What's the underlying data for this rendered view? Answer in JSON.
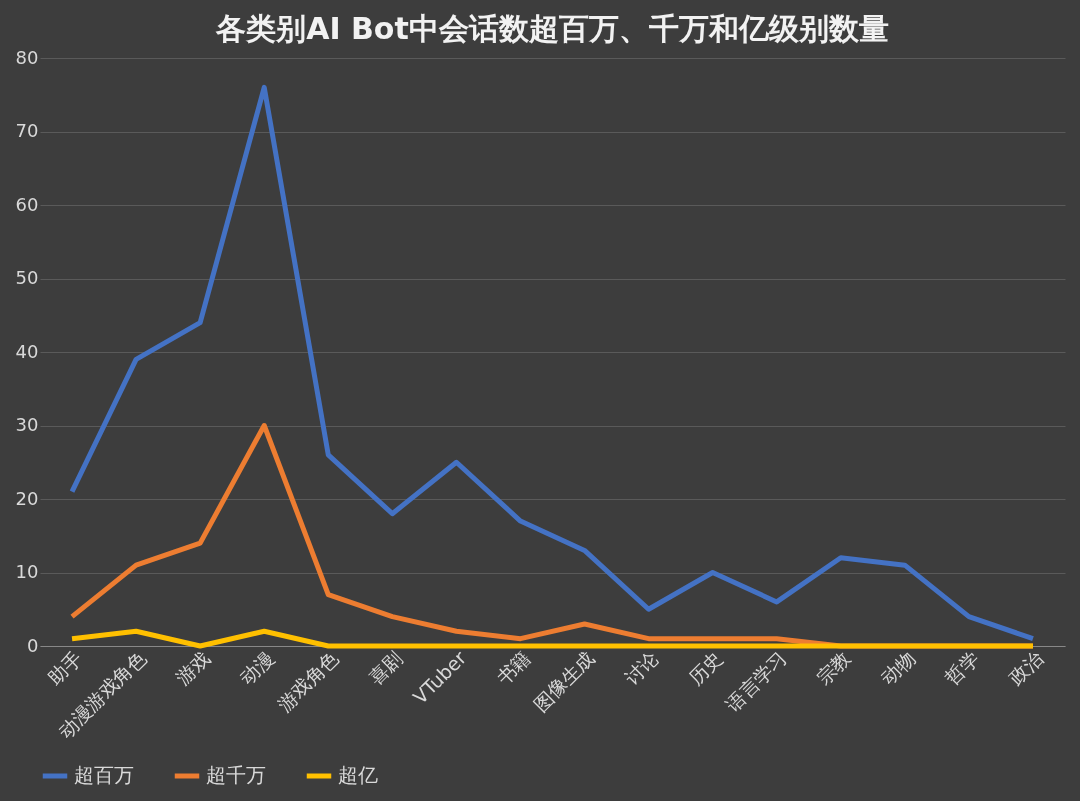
{
  "chart_data": {
    "type": "line",
    "title": "各类别AI Bot中会话数超百万、千万和亿级别数量",
    "categories": [
      "助手",
      "动漫游戏角色",
      "游戏",
      "动漫",
      "游戏角色",
      "喜剧",
      "VTuber",
      "书籍",
      "图像生成",
      "讨论",
      "历史",
      "语言学习",
      "宗教",
      "动物",
      "哲学",
      "政治"
    ],
    "series": [
      {
        "name": "超百万",
        "color": "#4472c4",
        "values": [
          21,
          39,
          44,
          76,
          26,
          18,
          25,
          17,
          13,
          5,
          10,
          6,
          12,
          11,
          4,
          1
        ]
      },
      {
        "name": "超千万",
        "color": "#ed7d31",
        "values": [
          4,
          11,
          14,
          30,
          7,
          4,
          2,
          1,
          3,
          1,
          1,
          1,
          0,
          0,
          0,
          0
        ]
      },
      {
        "name": "超亿",
        "color": "#ffc000",
        "values": [
          1,
          2,
          0,
          2,
          0,
          0,
          0,
          0,
          0,
          0,
          0,
          0,
          0,
          0,
          0,
          0
        ]
      }
    ],
    "ylim": [
      0,
      80
    ],
    "yticks": [
      0,
      10,
      20,
      30,
      40,
      50,
      60,
      70,
      80
    ],
    "grid": "y",
    "legend": "bottom",
    "marker": "none",
    "line_style": "solid"
  }
}
